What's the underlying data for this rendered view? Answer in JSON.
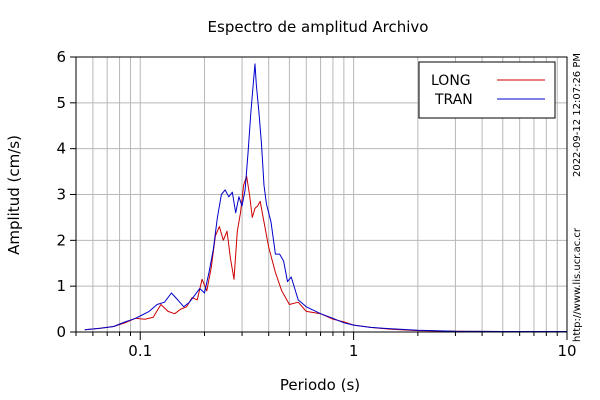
{
  "chart_data": {
    "type": "line",
    "title": "Espectro de amplitud Archivo",
    "xlabel": "Periodo (s)",
    "ylabel": "Amplitud (cm/s)",
    "xscale": "log",
    "xlim": [
      0.05,
      10
    ],
    "ylim": [
      0,
      6
    ],
    "grid": true,
    "legend_position": "top-right",
    "x_tick_labels": [
      {
        "value": 0.1,
        "label": "0.1"
      },
      {
        "value": 1,
        "label": "1"
      },
      {
        "value": 10,
        "label": "10"
      }
    ],
    "y_ticks": [
      0,
      1,
      2,
      3,
      4,
      5,
      6
    ],
    "side_text": [
      "2022-09-12 12:07:26 PM",
      "http://www.lis.ucr.ac.cr"
    ],
    "series": [
      {
        "name": "LONG",
        "color": "#cc0000",
        "points": [
          [
            0.055,
            0.05
          ],
          [
            0.065,
            0.08
          ],
          [
            0.075,
            0.12
          ],
          [
            0.085,
            0.2
          ],
          [
            0.095,
            0.3
          ],
          [
            0.105,
            0.28
          ],
          [
            0.115,
            0.32
          ],
          [
            0.125,
            0.6
          ],
          [
            0.135,
            0.45
          ],
          [
            0.145,
            0.4
          ],
          [
            0.155,
            0.5
          ],
          [
            0.165,
            0.55
          ],
          [
            0.175,
            0.75
          ],
          [
            0.185,
            0.7
          ],
          [
            0.195,
            1.15
          ],
          [
            0.205,
            0.9
          ],
          [
            0.215,
            1.4
          ],
          [
            0.225,
            2.1
          ],
          [
            0.235,
            2.3
          ],
          [
            0.245,
            2.0
          ],
          [
            0.255,
            2.2
          ],
          [
            0.265,
            1.6
          ],
          [
            0.275,
            1.15
          ],
          [
            0.285,
            2.2
          ],
          [
            0.295,
            2.6
          ],
          [
            0.305,
            3.2
          ],
          [
            0.315,
            3.4
          ],
          [
            0.325,
            3.0
          ],
          [
            0.335,
            2.5
          ],
          [
            0.345,
            2.7
          ],
          [
            0.355,
            2.75
          ],
          [
            0.365,
            2.85
          ],
          [
            0.38,
            2.4
          ],
          [
            0.4,
            1.85
          ],
          [
            0.43,
            1.3
          ],
          [
            0.46,
            0.9
          ],
          [
            0.5,
            0.6
          ],
          [
            0.55,
            0.65
          ],
          [
            0.6,
            0.45
          ],
          [
            0.7,
            0.4
          ],
          [
            0.8,
            0.28
          ],
          [
            0.9,
            0.22
          ],
          [
            1.0,
            0.15
          ],
          [
            1.2,
            0.1
          ],
          [
            1.5,
            0.06
          ],
          [
            2.0,
            0.03
          ],
          [
            3.0,
            0.015
          ],
          [
            5.0,
            0.01
          ],
          [
            10,
            0.01
          ]
        ]
      },
      {
        "name": "TRAN",
        "color": "#0000cc",
        "points": [
          [
            0.055,
            0.05
          ],
          [
            0.065,
            0.08
          ],
          [
            0.075,
            0.12
          ],
          [
            0.085,
            0.22
          ],
          [
            0.095,
            0.3
          ],
          [
            0.1,
            0.35
          ],
          [
            0.11,
            0.45
          ],
          [
            0.12,
            0.6
          ],
          [
            0.13,
            0.65
          ],
          [
            0.14,
            0.85
          ],
          [
            0.15,
            0.7
          ],
          [
            0.16,
            0.55
          ],
          [
            0.17,
            0.65
          ],
          [
            0.18,
            0.8
          ],
          [
            0.19,
            0.95
          ],
          [
            0.2,
            0.85
          ],
          [
            0.21,
            1.3
          ],
          [
            0.22,
            1.8
          ],
          [
            0.23,
            2.5
          ],
          [
            0.24,
            3.0
          ],
          [
            0.25,
            3.1
          ],
          [
            0.26,
            2.95
          ],
          [
            0.27,
            3.05
          ],
          [
            0.28,
            2.6
          ],
          [
            0.29,
            2.95
          ],
          [
            0.3,
            2.75
          ],
          [
            0.31,
            3.1
          ],
          [
            0.32,
            3.9
          ],
          [
            0.33,
            4.8
          ],
          [
            0.34,
            5.5
          ],
          [
            0.345,
            5.85
          ],
          [
            0.35,
            5.4
          ],
          [
            0.36,
            4.8
          ],
          [
            0.37,
            4.1
          ],
          [
            0.38,
            3.2
          ],
          [
            0.39,
            2.8
          ],
          [
            0.41,
            2.4
          ],
          [
            0.43,
            1.7
          ],
          [
            0.45,
            1.7
          ],
          [
            0.47,
            1.55
          ],
          [
            0.49,
            1.1
          ],
          [
            0.51,
            1.2
          ],
          [
            0.55,
            0.7
          ],
          [
            0.6,
            0.55
          ],
          [
            0.7,
            0.4
          ],
          [
            0.8,
            0.3
          ],
          [
            0.9,
            0.2
          ],
          [
            1.0,
            0.15
          ],
          [
            1.2,
            0.1
          ],
          [
            1.5,
            0.07
          ],
          [
            2.0,
            0.04
          ],
          [
            3.0,
            0.015
          ],
          [
            5.0,
            0.01
          ],
          [
            10,
            0.01
          ]
        ]
      }
    ]
  }
}
